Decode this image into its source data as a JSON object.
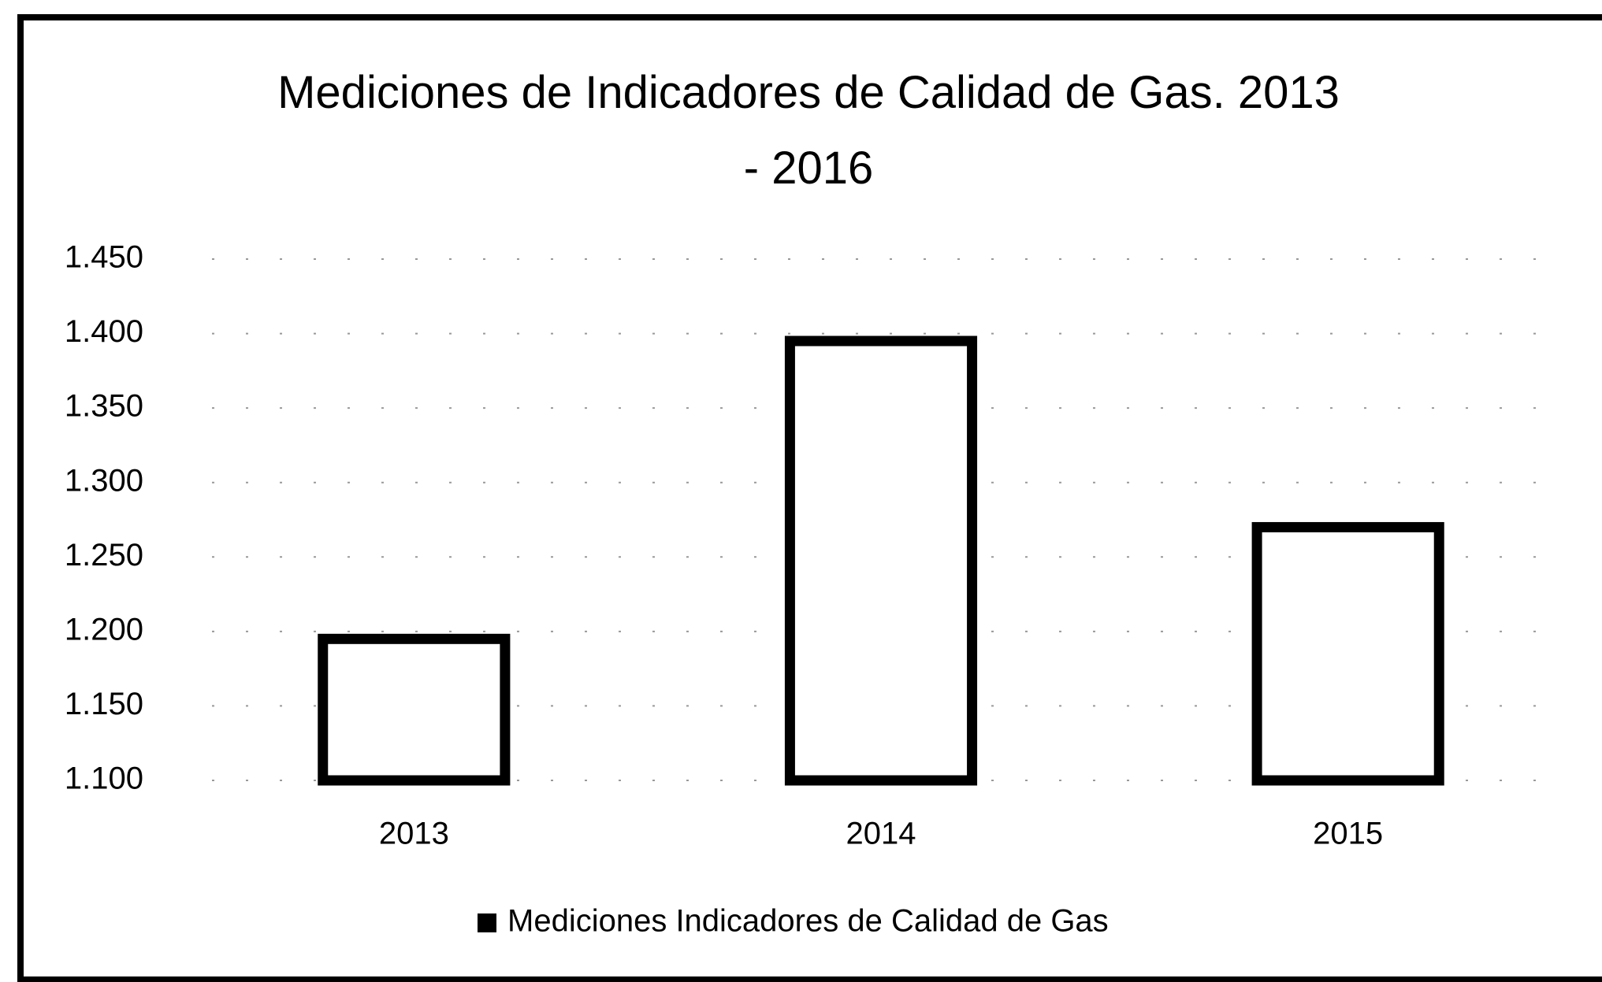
{
  "chart_data": {
    "type": "bar",
    "title": "Mediciones de Indicadores de Calidad de Gas. 2013 - 2016",
    "categories": [
      "2013",
      "2014",
      "2015"
    ],
    "series": [
      {
        "name": "Mediciones Indicadores de Calidad de Gas",
        "color": "#000000",
        "values": [
          1195,
          1395,
          1270
        ]
      }
    ],
    "ylim": [
      1100,
      1450
    ],
    "yticks": [
      {
        "value": 1100,
        "label": "1.100"
      },
      {
        "value": 1150,
        "label": "1.150"
      },
      {
        "value": 1200,
        "label": "1.200"
      },
      {
        "value": 1250,
        "label": "1.250"
      },
      {
        "value": 1300,
        "label": "1.300"
      },
      {
        "value": 1350,
        "label": "1.350"
      },
      {
        "value": 1400,
        "label": "1.400"
      },
      {
        "value": 1450,
        "label": "1.450"
      }
    ],
    "grid": true,
    "legend": "bottom"
  }
}
